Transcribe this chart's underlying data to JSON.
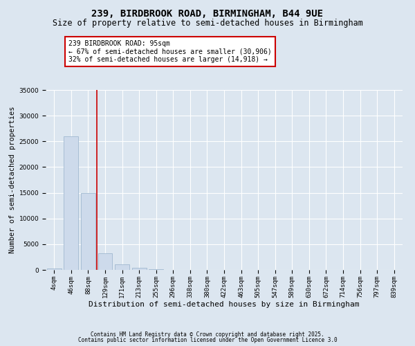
{
  "title": "239, BIRDBROOK ROAD, BIRMINGHAM, B44 9UE",
  "subtitle": "Size of property relative to semi-detached houses in Birmingham",
  "xlabel": "Distribution of semi-detached houses by size in Birmingham",
  "ylabel": "Number of semi-detached properties",
  "categories": [
    "4sqm",
    "46sqm",
    "88sqm",
    "129sqm",
    "171sqm",
    "213sqm",
    "255sqm",
    "296sqm",
    "338sqm",
    "380sqm",
    "422sqm",
    "463sqm",
    "505sqm",
    "547sqm",
    "589sqm",
    "630sqm",
    "672sqm",
    "714sqm",
    "756sqm",
    "797sqm",
    "839sqm"
  ],
  "values": [
    300,
    26000,
    15000,
    3200,
    1100,
    400,
    150,
    50,
    10,
    5,
    3,
    2,
    1,
    1,
    0,
    0,
    0,
    0,
    0,
    0,
    0
  ],
  "bar_color": "#cddaeb",
  "bar_edge_color": "#a0b8d0",
  "bar_linewidth": 0.6,
  "vline_x_index": 2,
  "vline_color": "#cc0000",
  "vline_linewidth": 1.2,
  "ylim": [
    0,
    35000
  ],
  "yticks": [
    0,
    5000,
    10000,
    15000,
    20000,
    25000,
    30000,
    35000
  ],
  "annotation_text": "239 BIRDBROOK ROAD: 95sqm\n← 67% of semi-detached houses are smaller (30,906)\n32% of semi-detached houses are larger (14,918) →",
  "annotation_box_color": "#ffffff",
  "annotation_edge_color": "#cc0000",
  "annotation_fontsize": 7,
  "title_fontsize": 10,
  "subtitle_fontsize": 8.5,
  "xlabel_fontsize": 8,
  "ylabel_fontsize": 7.5,
  "tick_fontsize": 6.5,
  "background_color": "#dce6f0",
  "plot_background_color": "#dce6f0",
  "grid_color": "#ffffff",
  "footer_line1": "Contains HM Land Registry data © Crown copyright and database right 2025.",
  "footer_line2": "Contains public sector information licensed under the Open Government Licence 3.0",
  "footer_fontsize": 5.5
}
